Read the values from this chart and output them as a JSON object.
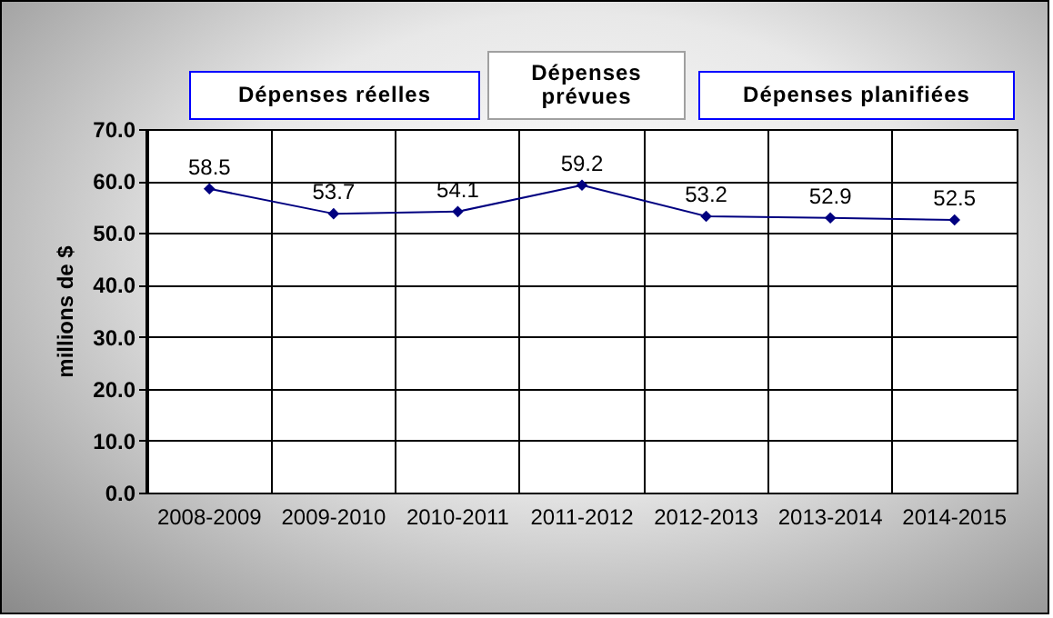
{
  "chart_data": {
    "type": "line",
    "ylabel": "millions de $",
    "categories": [
      "2008-2009",
      "2009-2010",
      "2010-2011",
      "2011-2012",
      "2012-2013",
      "2013-2014",
      "2014-2015"
    ],
    "series": [
      {
        "color": "#000080",
        "values": [
          58.5,
          53.7,
          54.1,
          59.2,
          53.2,
          52.9,
          52.5
        ]
      }
    ],
    "ylim": [
      0,
      70
    ],
    "yticks": [
      {
        "value": 0,
        "label": "0.0"
      },
      {
        "value": 10,
        "label": "10.0"
      },
      {
        "value": 20,
        "label": "20.0"
      },
      {
        "value": 30,
        "label": "30.0"
      },
      {
        "value": 40,
        "label": "40.0"
      },
      {
        "value": 50,
        "label": "50.0"
      },
      {
        "value": 60,
        "label": "60.0"
      },
      {
        "value": 70,
        "label": "70.0"
      }
    ],
    "annotations": [
      "Dépenses réelles",
      "Dépenses prévues",
      "Dépenses planifiées"
    ],
    "data_labels": true,
    "grid": true,
    "marker": "diamond",
    "line_style": "solid"
  }
}
